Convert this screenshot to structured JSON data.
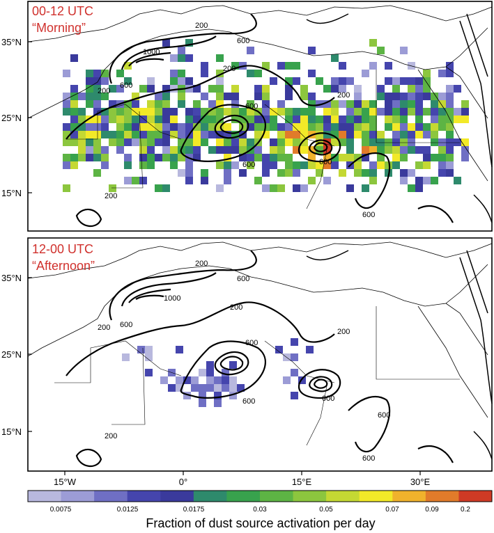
{
  "panels": [
    {
      "title_line1": "00-12 UTC",
      "title_line2": "“Morning”",
      "contour_labels": [
        "200",
        "600",
        "1000",
        "200",
        "600",
        "200",
        "200",
        "600",
        "600",
        "600",
        "200",
        "600"
      ],
      "lat_labels": [
        "35°N",
        "25°N",
        "15°N"
      ],
      "activation_level": "high"
    },
    {
      "title_line1": "12-00 UTC",
      "title_line2": "“Afternoon”",
      "contour_labels": [
        "200",
        "600",
        "1000",
        "200",
        "600",
        "200",
        "600",
        "200",
        "600",
        "600",
        "600",
        "200",
        "600"
      ],
      "lat_labels": [
        "35°N",
        "25°N",
        "15°N"
      ],
      "activation_level": "low"
    }
  ],
  "lon_labels": [
    "15°W",
    "0°",
    "15°E",
    "30°E"
  ],
  "colorbar": {
    "title": "Fraction of dust source activation per day",
    "tick_labels": [
      "0.0075",
      "0.0125",
      "0.0175",
      "0.03",
      "0.05",
      "0.07",
      "0.09",
      "0.2"
    ],
    "colors": [
      "#b8b8de",
      "#9c9cd6",
      "#6f6fc4",
      "#4545ad",
      "#3a3a9c",
      "#2e8a6c",
      "#38a24d",
      "#5db444",
      "#8cc63e",
      "#c4d833",
      "#f2e928",
      "#f0b22c",
      "#e17b2a",
      "#cf3a25"
    ]
  }
}
